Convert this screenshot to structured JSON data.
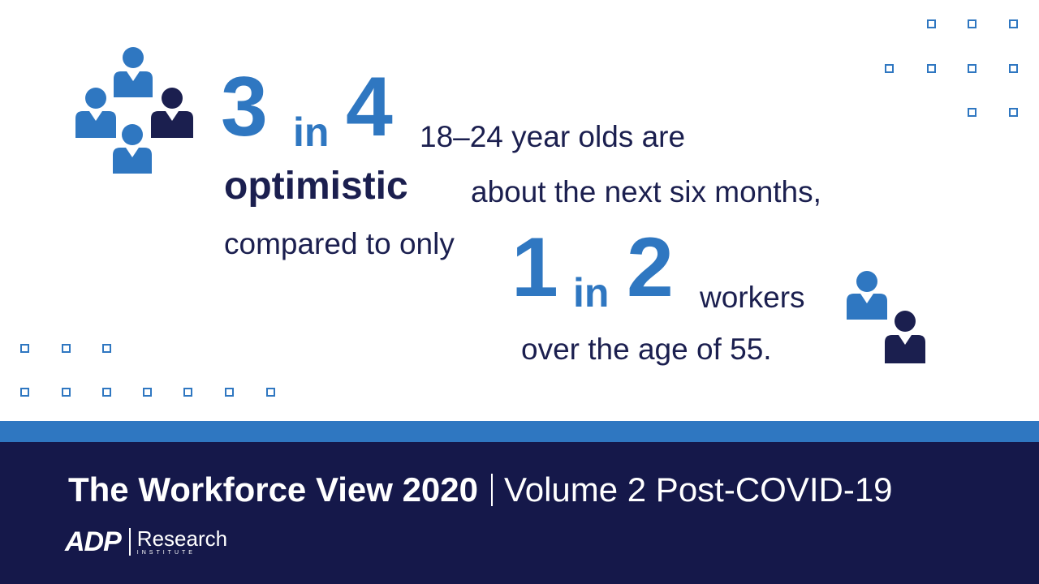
{
  "headline": {
    "num_a": "3",
    "in_a": "in",
    "num_b": "4",
    "line1_rest": "18–24 year olds are",
    "bold_word": "optimistic",
    "line2_rest": "about the next six months,",
    "line3": "compared to only",
    "num_c": "1",
    "in_b": "in",
    "num_d": "2",
    "line4_rest": "workers",
    "line5": "over the age of 55."
  },
  "footer": {
    "title_bold": "The Workforce View 2020",
    "title_regular": "Volume 2 Post-COVID-19"
  },
  "logo": {
    "brand": "ADP",
    "name": "Research",
    "sub": "INSTITUTE"
  },
  "colors": {
    "navy": "#1b1f4f",
    "blue": "#2f77c1",
    "footer_band": "#15184a",
    "white": "#ffffff"
  },
  "icons": [
    "people-group-icon",
    "person-pair-icon",
    "dot-grid-decoration"
  ]
}
